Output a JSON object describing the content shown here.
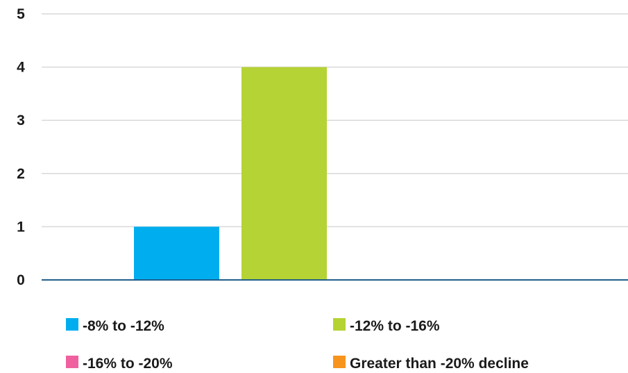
{
  "chart_data": {
    "type": "bar",
    "title": "",
    "xlabel": "",
    "ylabel": "",
    "ylim": [
      0,
      5
    ],
    "yticks": [
      0,
      1,
      2,
      3,
      4,
      5
    ],
    "grid": true,
    "legend_placement": "bottom",
    "categories": [
      ""
    ],
    "series": [
      {
        "name": "-8% to -12%",
        "values": [
          1
        ],
        "color": "#00AEEF"
      },
      {
        "name": "-12% to -16%",
        "values": [
          4
        ],
        "color": "#B5D334"
      },
      {
        "name": "-16% to -20%",
        "values": [
          0
        ],
        "color": "#F0609E"
      },
      {
        "name": "Greater than -20% decline",
        "values": [
          0
        ],
        "color": "#F7941D"
      }
    ],
    "axis_color": "#1F5F8B",
    "grid_color": "#D9D9D9"
  }
}
